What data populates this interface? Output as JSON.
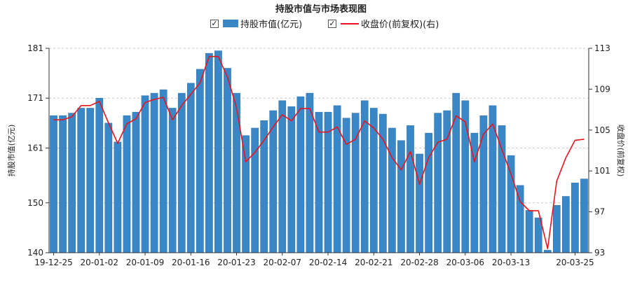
{
  "chart_data": {
    "type": "bar",
    "title": "持股市值与市场表现图",
    "legend": [
      "持股市值(亿元)",
      "收盘价(前复权)(右)"
    ],
    "legend_placement": "top",
    "ylabel": "持股市值(亿元)",
    "y2label": "收盘价(前复权)",
    "ylim": [
      140,
      181
    ],
    "y2lim": [
      93,
      113
    ],
    "yticks": [
      140,
      150,
      161,
      171,
      181
    ],
    "y2ticks": [
      93,
      97,
      101,
      105,
      109,
      113
    ],
    "grid": true,
    "xtick_labels": [
      "19-12-25",
      "20-01-02",
      "20-01-09",
      "20-01-16",
      "20-01-23",
      "20-02-07",
      "20-02-14",
      "20-02-21",
      "20-02-28",
      "20-03-06",
      "20-03-13",
      "20-03-25"
    ],
    "xtick_indices": [
      0,
      5,
      10,
      15,
      20,
      25,
      30,
      35,
      40,
      45,
      50,
      57
    ],
    "series": [
      {
        "name": "持股市值(亿元)",
        "kind": "bar",
        "axis": "left",
        "values": [
          167.5,
          167.5,
          168,
          169,
          169,
          171,
          166,
          162.2,
          167.5,
          168.2,
          171.5,
          172,
          172.7,
          169,
          172,
          174,
          176.8,
          180,
          180.5,
          177,
          172,
          163.5,
          165,
          166.5,
          168.5,
          170.5,
          169.3,
          171.3,
          172,
          168.2,
          168.2,
          169.5,
          167,
          168,
          170.5,
          169,
          167.8,
          165,
          162.5,
          165.5,
          159.8,
          164,
          168,
          168.5,
          172,
          170.5,
          164,
          167.5,
          169.5,
          165.5,
          159.5,
          153.5,
          148.5,
          147,
          140.5,
          149.5,
          151.3,
          154,
          154.8
        ]
      },
      {
        "name": "收盘价(前复权)(右)",
        "kind": "line",
        "axis": "right",
        "values": [
          106,
          106,
          106.3,
          107.4,
          107.4,
          107.8,
          105.7,
          103.7,
          105.6,
          106.1,
          107.7,
          108,
          108.2,
          106,
          107.4,
          108.5,
          109.6,
          112.2,
          112.2,
          110.2,
          107.2,
          101.9,
          102.8,
          104,
          105.3,
          106.5,
          105.9,
          107.1,
          107.1,
          104.8,
          104.8,
          105.3,
          103.6,
          104.1,
          105.9,
          105.2,
          104.1,
          102.3,
          101.1,
          102.9,
          99.7,
          102.3,
          103.8,
          104.1,
          106.4,
          105.8,
          101.9,
          104.6,
          105.6,
          103.1,
          100.7,
          98,
          97.1,
          97.1,
          93.4,
          100,
          102.3,
          104,
          104.1
        ]
      }
    ]
  }
}
